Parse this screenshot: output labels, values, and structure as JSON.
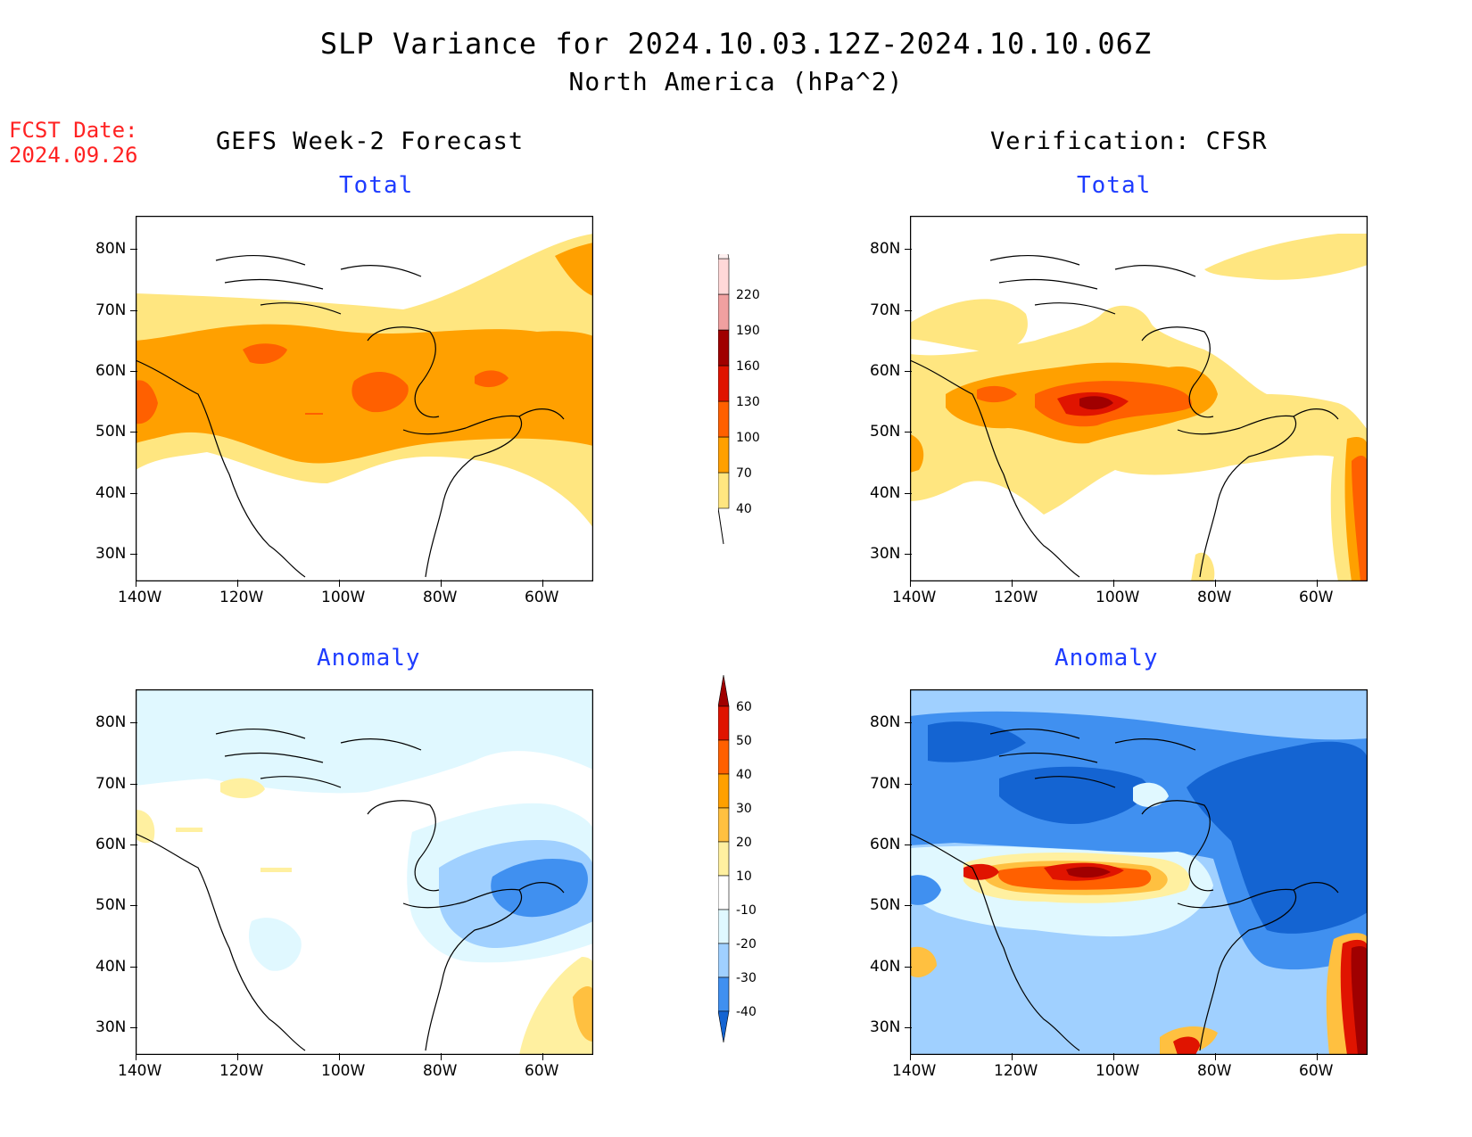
{
  "header": {
    "title": "SLP Variance for 2024.10.03.12Z-2024.10.10.06Z",
    "subtitle": "North America (hPa^2)",
    "fcst_label": "FCST Date:",
    "fcst_date": "2024.09.26"
  },
  "columns": {
    "left": "GEFS Week-2 Forecast",
    "right": "Verification: CFSR"
  },
  "panels": {
    "gefs_total": {
      "title": "Total"
    },
    "cfsr_total": {
      "title": "Total"
    },
    "gefs_anomaly": {
      "title": "Anomaly"
    },
    "cfsr_anomaly": {
      "title": "Anomaly"
    }
  },
  "axes": {
    "lat_labels": [
      "80N",
      "70N",
      "60N",
      "50N",
      "40N",
      "30N"
    ],
    "lon_labels": [
      "140W",
      "120W",
      "100W",
      "80W",
      "60W"
    ]
  },
  "colorbars": {
    "total": {
      "levels": [
        "40",
        "70",
        "100",
        "130",
        "160",
        "190",
        "220"
      ],
      "colors": [
        "#ffe680",
        "#ffa000",
        "#ff6000",
        "#e01400",
        "#a00000",
        "#f0a0a0",
        "#ffd8d8"
      ]
    },
    "anomaly": {
      "levels": [
        "60",
        "50",
        "40",
        "30",
        "20",
        "10",
        "-10",
        "-20",
        "-30",
        "-40"
      ],
      "colors": [
        "#a00000",
        "#e01400",
        "#ff6000",
        "#ffa000",
        "#ffc040",
        "#fff0a0",
        "#ffffff",
        "#e0f8ff",
        "#a0d0ff",
        "#4090f0",
        "#1464d2"
      ]
    }
  }
}
